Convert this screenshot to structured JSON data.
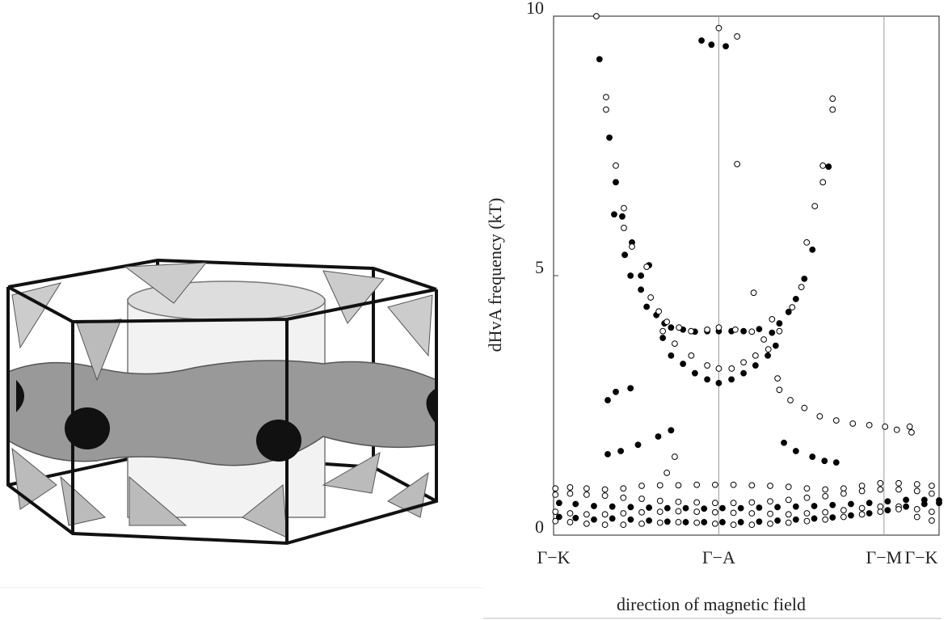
{
  "chart_data": {
    "type": "scatter",
    "ylabel": "dHvA frequency (kT)",
    "xlabel": "direction of magnetic field",
    "xlim": [
      0,
      210
    ],
    "ylim": [
      0,
      10
    ],
    "xticks": [
      {
        "value": 0,
        "label": "Γ−K"
      },
      {
        "value": 90,
        "label": "Γ−A"
      },
      {
        "value": 180,
        "label": "Γ−M"
      },
      {
        "value": 210,
        "label": "Γ−K"
      }
    ],
    "yticks": [
      0,
      5,
      10
    ],
    "grid": true,
    "series": [
      {
        "color": "#000000",
        "fill": "#000000",
        "x": [
          25,
          30.4,
          33.9,
          33,
          37.4,
          42.7,
          38.8,
          41.9,
          47.6,
          52,
          47.6,
          50.7,
          56,
          60.4,
          64,
          70.5,
          77,
          83.7,
          90,
          96.9,
          103.5,
          112,
          119,
          123,
          128,
          132,
          136.6,
          141,
          149.8,
          59.5,
          64,
          70.5,
          77,
          83.7,
          90,
          96.9,
          103.5,
          110,
          116.7,
          121,
          80.6,
          86,
          93.8,
          29.5,
          33.9,
          41.9,
          29.5,
          36.6,
          46,
          57,
          64,
          125.5,
          132,
          141,
          147.6,
          154,
          3,
          12,
          22,
          32,
          42,
          52,
          62,
          72,
          82,
          92,
          102,
          112,
          122,
          132,
          142,
          152,
          162,
          172,
          182,
          192,
          202,
          210,
          3,
          12,
          22,
          32,
          42,
          52,
          62,
          72,
          82,
          92,
          102,
          112,
          122,
          132,
          142,
          152,
          162,
          172,
          182,
          192,
          202,
          210
        ],
        "values": [
          9.17,
          7.66,
          6.8,
          6.18,
          6.14,
          5.64,
          5.4,
          5.0,
          5.0,
          5.2,
          4.73,
          4.4,
          4.24,
          4.08,
          4.0,
          3.96,
          3.92,
          3.93,
          3.93,
          3.93,
          3.93,
          3.97,
          3.9,
          4.08,
          4.3,
          4.55,
          4.94,
          5.5,
          7.1,
          3.8,
          3.46,
          3.3,
          3.12,
          3.0,
          2.93,
          3.0,
          3.12,
          3.27,
          3.46,
          3.65,
          9.53,
          9.45,
          9.42,
          2.6,
          2.76,
          2.83,
          1.56,
          1.62,
          1.74,
          1.9,
          2.02,
          1.78,
          1.62,
          1.51,
          1.43,
          1.4,
          0.62,
          0.6,
          0.56,
          0.55,
          0.54,
          0.53,
          0.52,
          0.52,
          0.51,
          0.52,
          0.52,
          0.53,
          0.54,
          0.55,
          0.56,
          0.58,
          0.6,
          0.62,
          0.65,
          0.68,
          0.68,
          0.67,
          0.35,
          0.33,
          0.3,
          0.32,
          0.3,
          0.28,
          0.26,
          0.25,
          0.25,
          0.25,
          0.25,
          0.26,
          0.28,
          0.3,
          0.32,
          0.34,
          0.38,
          0.42,
          0.48,
          0.55,
          0.6,
          0.62
        ]
      },
      {
        "color": "#000000",
        "fill": "#ffffff",
        "x": [
          23.3,
          28.6,
          28.6,
          33.9,
          38.3,
          38.3,
          42.7,
          50.7,
          52.9,
          57.3,
          61.7,
          68.3,
          74.9,
          83.7,
          90,
          99,
          108,
          90,
          100,
          100,
          109,
          114.5,
          119,
          123,
          130,
          135,
          137.9,
          142.3,
          146.7,
          146.7,
          152,
          152,
          59.5,
          66,
          75,
          83.7,
          90,
          97,
          103.5,
          110,
          117,
          122,
          123,
          129,
          136.6,
          145,
          154,
          163,
          172,
          180.6,
          187,
          194,
          195,
          61.7,
          66,
          1,
          9,
          18,
          28,
          38,
          48,
          58,
          68,
          78,
          88,
          98,
          108,
          118,
          128,
          138,
          148,
          158,
          168,
          178,
          188,
          198,
          206,
          1,
          9,
          18,
          28,
          38,
          48,
          58,
          68,
          78,
          88,
          98,
          108,
          118,
          128,
          138,
          148,
          158,
          168,
          178,
          188,
          198,
          206,
          1,
          9,
          18,
          28,
          38,
          48,
          58,
          68,
          78,
          88,
          98,
          108,
          118,
          128,
          138,
          148,
          158,
          168,
          178,
          188,
          198,
          206,
          1,
          9,
          18,
          28,
          38,
          48,
          58,
          68,
          78,
          88,
          98,
          108,
          118,
          128,
          138,
          148,
          158,
          168,
          178,
          188,
          198,
          206
        ],
        "values": [
          10.0,
          8.44,
          8.2,
          7.12,
          6.3,
          5.92,
          5.56,
          5.17,
          4.58,
          4.31,
          4.11,
          4.0,
          3.93,
          3.96,
          4.0,
          3.96,
          3.92,
          9.77,
          9.61,
          7.15,
          4.67,
          3.77,
          4.16,
          3.93,
          4.39,
          4.78,
          5.64,
          6.34,
          6.8,
          7.12,
          8.41,
          8.2,
          3.93,
          3.69,
          3.46,
          3.27,
          3.21,
          3.21,
          3.33,
          3.46,
          3.58,
          3.02,
          2.8,
          2.6,
          2.45,
          2.29,
          2.21,
          2.15,
          2.12,
          2.09,
          2.03,
          2.09,
          1.98,
          1.2,
          1.51,
          0.9,
          0.92,
          0.9,
          0.88,
          0.9,
          0.95,
          0.96,
          0.96,
          0.97,
          0.97,
          0.97,
          0.96,
          0.95,
          0.93,
          0.9,
          0.88,
          0.9,
          0.95,
          1.0,
          1.0,
          0.98,
          0.95,
          0.78,
          0.8,
          0.78,
          0.76,
          0.72,
          0.7,
          0.66,
          0.64,
          0.63,
          0.62,
          0.62,
          0.63,
          0.65,
          0.68,
          0.72,
          0.75,
          0.8,
          0.85,
          0.88,
          0.88,
          0.85,
          0.8,
          0.45,
          0.42,
          0.4,
          0.4,
          0.42,
          0.44,
          0.45,
          0.46,
          0.45,
          0.44,
          0.43,
          0.42,
          0.41,
          0.4,
          0.42,
          0.44,
          0.48,
          0.52,
          0.55,
          0.55,
          0.5,
          0.45,
          0.27,
          0.25,
          0.22,
          0.2,
          0.2,
          0.22,
          0.24,
          0.25,
          0.24,
          0.22,
          0.2,
          0.2,
          0.22,
          0.24,
          0.27,
          0.3,
          0.35,
          0.4,
          0.45,
          0.5,
          0.35,
          0.28
        ]
      }
    ]
  }
}
